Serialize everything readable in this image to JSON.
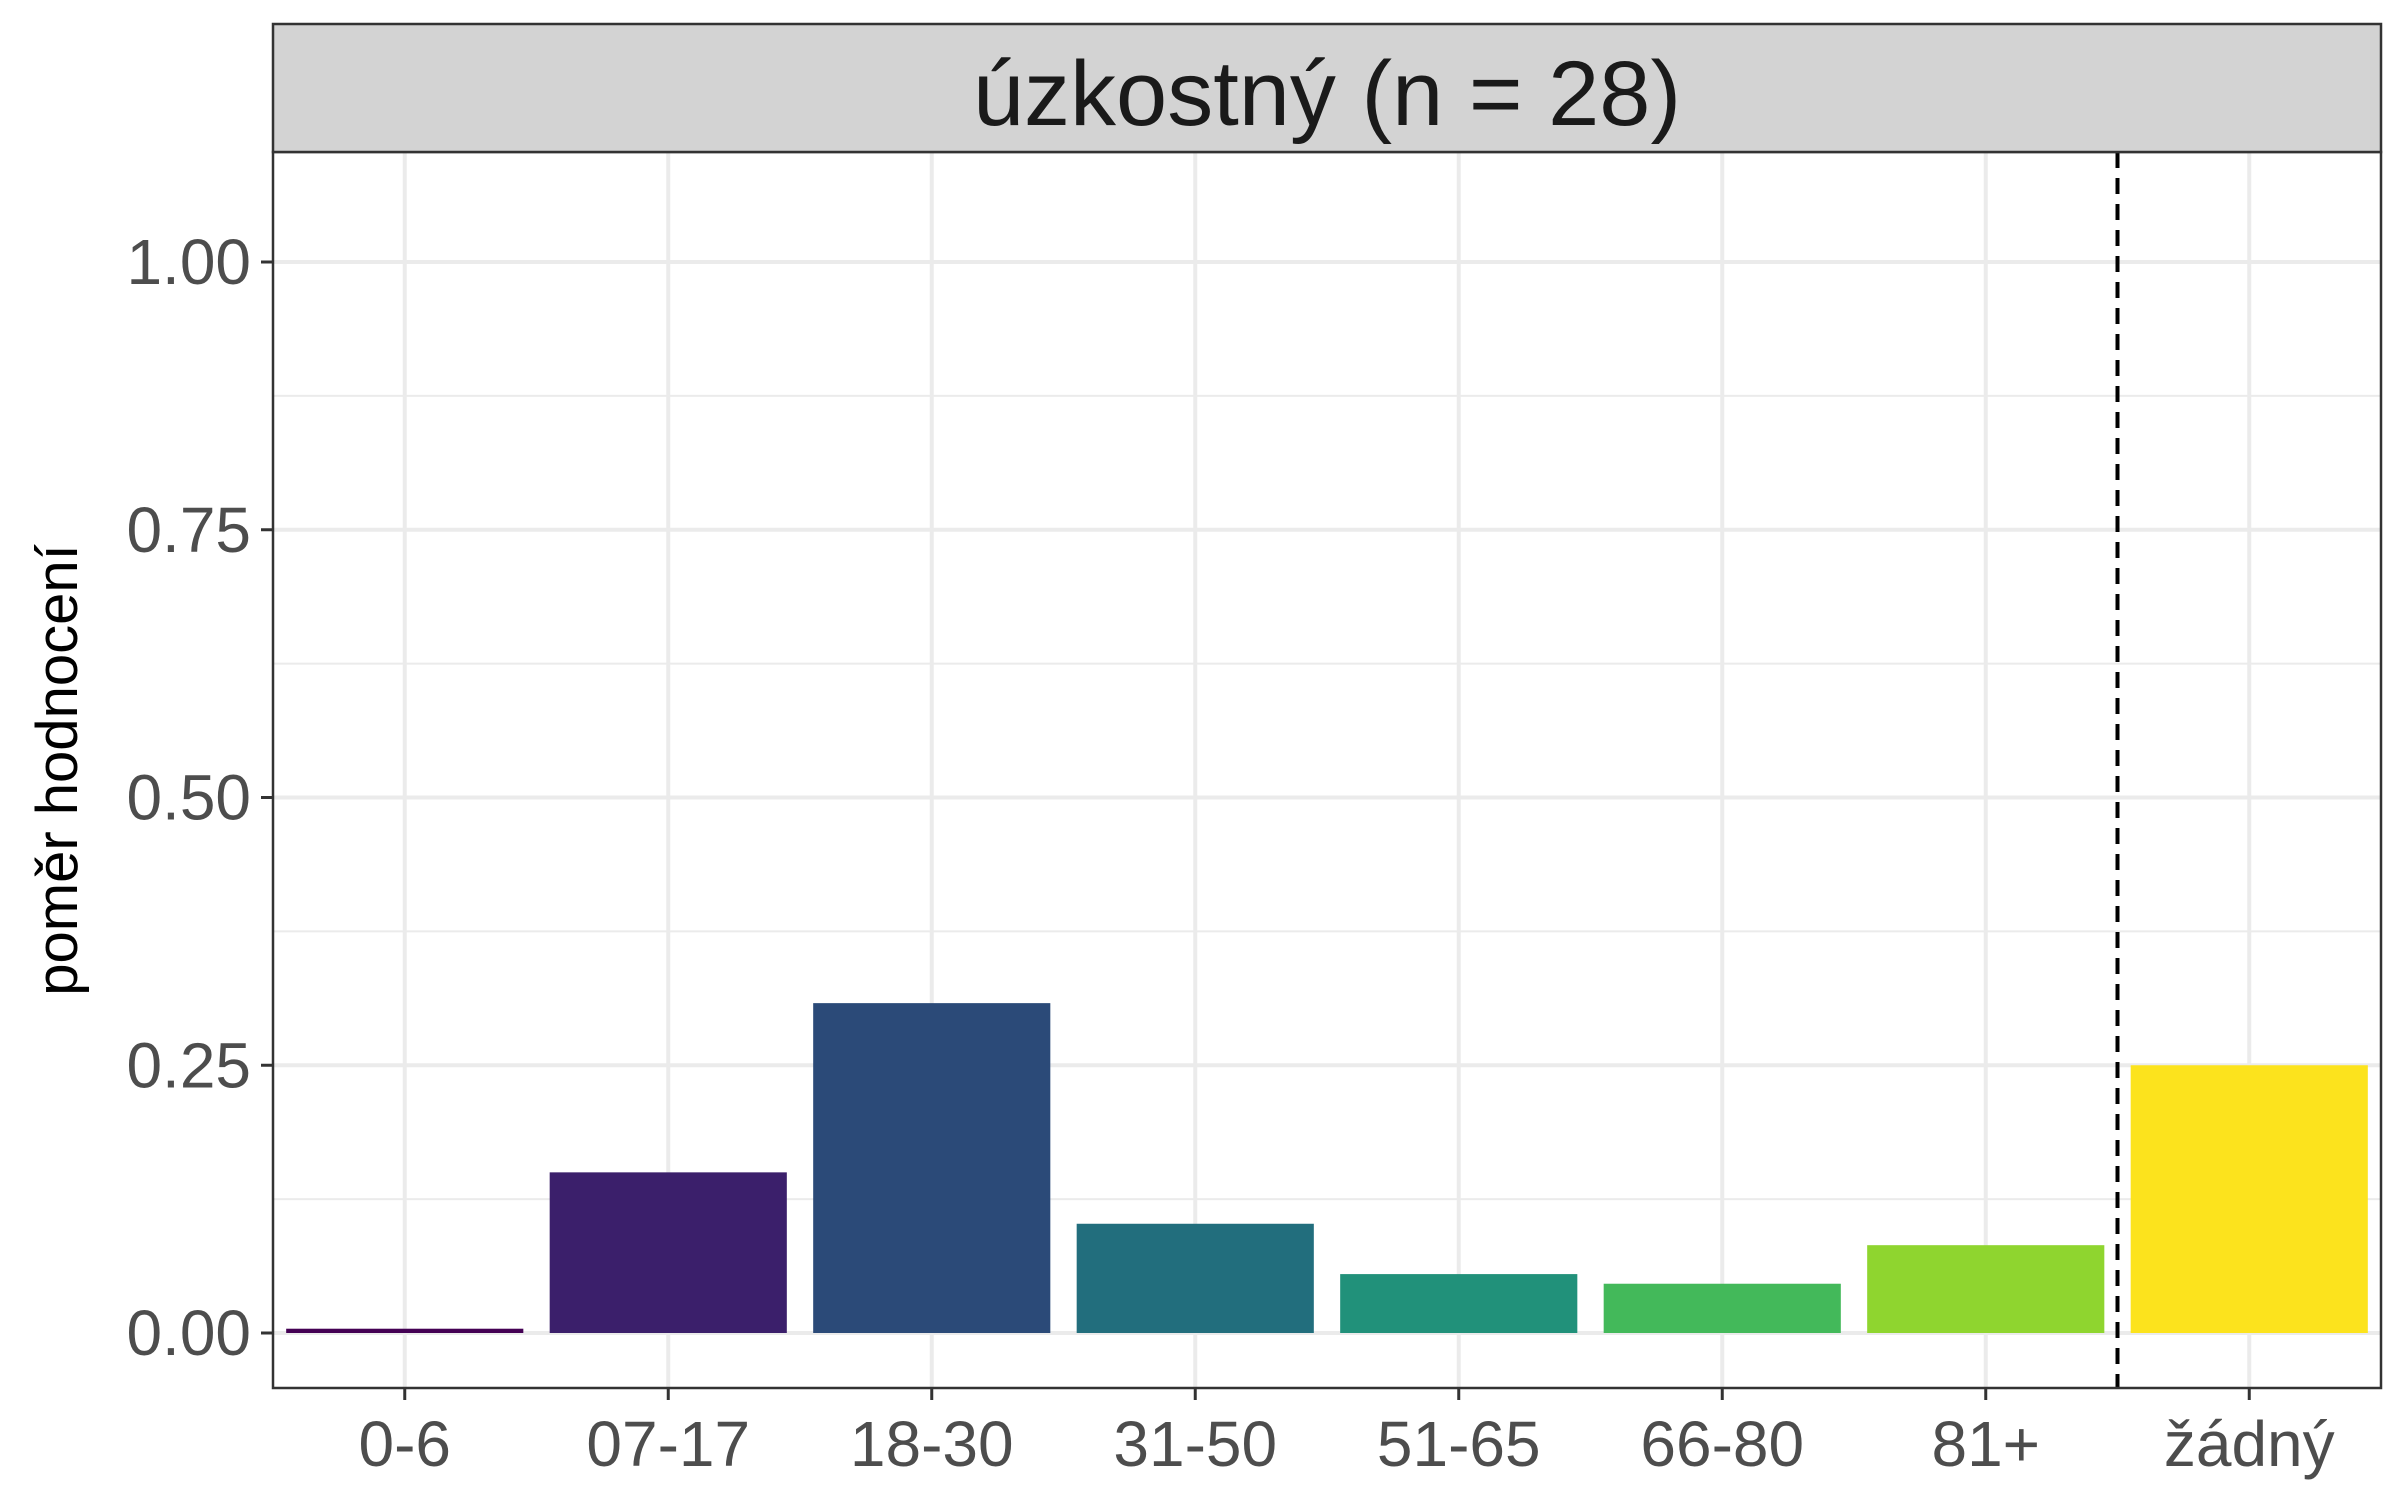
{
  "chart_data": {
    "type": "bar",
    "title": "úzkostný (n = 28)",
    "xlabel": "",
    "ylabel": "poměr hodnocení",
    "categories": [
      "0-6",
      "07-17",
      "18-30",
      "31-50",
      "51-65",
      "66-80",
      "81+",
      "žádný"
    ],
    "values": [
      0.004,
      0.15,
      0.308,
      0.102,
      0.055,
      0.046,
      0.082,
      0.25
    ],
    "colors": [
      "#440154",
      "#3b1f6b",
      "#2b4a78",
      "#226e7d",
      "#21917a",
      "#43b95a",
      "#8fd52f",
      "#fce31d"
    ],
    "ylim": [
      -0.05,
      1.1
    ],
    "yticks": [
      "0.00",
      "0.25",
      "0.50",
      "0.75",
      "1.00"
    ],
    "ytick_values": [
      0,
      0.25,
      0.5,
      0.75,
      1.0
    ],
    "reference_line": {
      "style": "dashed",
      "between": [
        "81+",
        "žádný"
      ]
    },
    "grid": true,
    "legend": "none"
  }
}
